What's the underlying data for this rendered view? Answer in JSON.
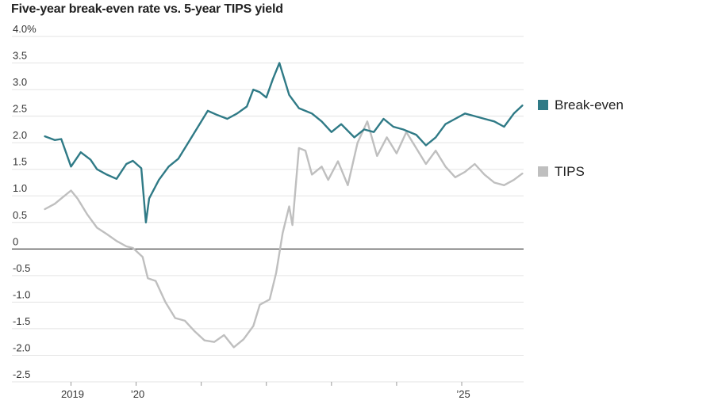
{
  "chart_data": {
    "type": "line",
    "title": "Five-year break-even rate vs. 5-year TIPS yield",
    "ylim": [
      -2.5,
      4.0
    ],
    "y_ticks": [
      {
        "value": 4.0,
        "label": "4.0%"
      },
      {
        "value": 3.5,
        "label": "3.5"
      },
      {
        "value": 3.0,
        "label": "3.0"
      },
      {
        "value": 2.5,
        "label": "2.5"
      },
      {
        "value": 2.0,
        "label": "2.0"
      },
      {
        "value": 1.5,
        "label": "1.5"
      },
      {
        "value": 1.0,
        "label": "1.0"
      },
      {
        "value": 0.5,
        "label": "0.5"
      },
      {
        "value": 0,
        "label": "0"
      },
      {
        "value": -0.5,
        "label": "-0.5"
      },
      {
        "value": -1.0,
        "label": "-1.0"
      },
      {
        "value": -1.5,
        "label": "-1.5"
      },
      {
        "value": -2.0,
        "label": "-2.0"
      },
      {
        "value": -2.5,
        "label": "-2.5"
      }
    ],
    "xlim": [
      2018.58,
      2025.95
    ],
    "x_ticks": [
      {
        "value": 2019.0,
        "label": "2019"
      },
      {
        "value": 2020.0,
        "label": "’20"
      },
      {
        "value": 2021.0,
        "label": ""
      },
      {
        "value": 2022.0,
        "label": ""
      },
      {
        "value": 2023.0,
        "label": ""
      },
      {
        "value": 2024.0,
        "label": ""
      },
      {
        "value": 2025.0,
        "label": "’25"
      }
    ],
    "grid": true,
    "legend_position": "right",
    "series": [
      {
        "name": "Break-even",
        "color": "#2f7a86",
        "points": [
          [
            2018.6,
            2.12
          ],
          [
            2018.75,
            2.05
          ],
          [
            2018.85,
            2.07
          ],
          [
            2019.0,
            1.55
          ],
          [
            2019.15,
            1.82
          ],
          [
            2019.3,
            1.68
          ],
          [
            2019.4,
            1.5
          ],
          [
            2019.55,
            1.4
          ],
          [
            2019.7,
            1.32
          ],
          [
            2019.85,
            1.6
          ],
          [
            2019.95,
            1.66
          ],
          [
            2020.08,
            1.52
          ],
          [
            2020.15,
            0.5
          ],
          [
            2020.2,
            0.95
          ],
          [
            2020.35,
            1.3
          ],
          [
            2020.5,
            1.55
          ],
          [
            2020.65,
            1.7
          ],
          [
            2020.8,
            2.0
          ],
          [
            2020.95,
            2.3
          ],
          [
            2021.1,
            2.6
          ],
          [
            2021.25,
            2.52
          ],
          [
            2021.4,
            2.45
          ],
          [
            2021.55,
            2.55
          ],
          [
            2021.7,
            2.68
          ],
          [
            2021.8,
            3.0
          ],
          [
            2021.9,
            2.95
          ],
          [
            2022.0,
            2.85
          ],
          [
            2022.1,
            3.2
          ],
          [
            2022.2,
            3.5
          ],
          [
            2022.25,
            3.3
          ],
          [
            2022.35,
            2.9
          ],
          [
            2022.5,
            2.65
          ],
          [
            2022.7,
            2.55
          ],
          [
            2022.85,
            2.4
          ],
          [
            2023.0,
            2.2
          ],
          [
            2023.15,
            2.35
          ],
          [
            2023.35,
            2.1
          ],
          [
            2023.5,
            2.25
          ],
          [
            2023.65,
            2.2
          ],
          [
            2023.8,
            2.45
          ],
          [
            2023.95,
            2.3
          ],
          [
            2024.1,
            2.25
          ],
          [
            2024.3,
            2.15
          ],
          [
            2024.45,
            1.95
          ],
          [
            2024.6,
            2.1
          ],
          [
            2024.75,
            2.35
          ],
          [
            2024.9,
            2.45
          ],
          [
            2025.05,
            2.55
          ],
          [
            2025.2,
            2.5
          ],
          [
            2025.35,
            2.45
          ],
          [
            2025.5,
            2.4
          ],
          [
            2025.65,
            2.3
          ],
          [
            2025.8,
            2.55
          ],
          [
            2025.93,
            2.7
          ]
        ]
      },
      {
        "name": "TIPS",
        "color": "#bfbfbf",
        "points": [
          [
            2018.6,
            0.75
          ],
          [
            2018.75,
            0.85
          ],
          [
            2018.85,
            0.95
          ],
          [
            2019.0,
            1.1
          ],
          [
            2019.1,
            0.95
          ],
          [
            2019.25,
            0.65
          ],
          [
            2019.4,
            0.4
          ],
          [
            2019.55,
            0.28
          ],
          [
            2019.7,
            0.15
          ],
          [
            2019.85,
            0.05
          ],
          [
            2019.95,
            0.02
          ],
          [
            2020.1,
            -0.15
          ],
          [
            2020.18,
            -0.55
          ],
          [
            2020.3,
            -0.6
          ],
          [
            2020.45,
            -1.0
          ],
          [
            2020.6,
            -1.3
          ],
          [
            2020.75,
            -1.35
          ],
          [
            2020.9,
            -1.55
          ],
          [
            2021.05,
            -1.72
          ],
          [
            2021.2,
            -1.75
          ],
          [
            2021.35,
            -1.62
          ],
          [
            2021.5,
            -1.85
          ],
          [
            2021.65,
            -1.7
          ],
          [
            2021.8,
            -1.45
          ],
          [
            2021.9,
            -1.05
          ],
          [
            2022.05,
            -0.95
          ],
          [
            2022.15,
            -0.45
          ],
          [
            2022.25,
            0.3
          ],
          [
            2022.35,
            0.8
          ],
          [
            2022.4,
            0.45
          ],
          [
            2022.5,
            1.9
          ],
          [
            2022.6,
            1.85
          ],
          [
            2022.7,
            1.4
          ],
          [
            2022.85,
            1.55
          ],
          [
            2022.95,
            1.3
          ],
          [
            2023.1,
            1.65
          ],
          [
            2023.25,
            1.2
          ],
          [
            2023.4,
            2.0
          ],
          [
            2023.55,
            2.4
          ],
          [
            2023.7,
            1.75
          ],
          [
            2023.85,
            2.1
          ],
          [
            2024.0,
            1.8
          ],
          [
            2024.15,
            2.2
          ],
          [
            2024.3,
            1.9
          ],
          [
            2024.45,
            1.6
          ],
          [
            2024.6,
            1.85
          ],
          [
            2024.75,
            1.55
          ],
          [
            2024.9,
            1.35
          ],
          [
            2025.05,
            1.45
          ],
          [
            2025.2,
            1.6
          ],
          [
            2025.35,
            1.4
          ],
          [
            2025.5,
            1.25
          ],
          [
            2025.65,
            1.2
          ],
          [
            2025.8,
            1.3
          ],
          [
            2025.93,
            1.42
          ]
        ]
      }
    ]
  }
}
